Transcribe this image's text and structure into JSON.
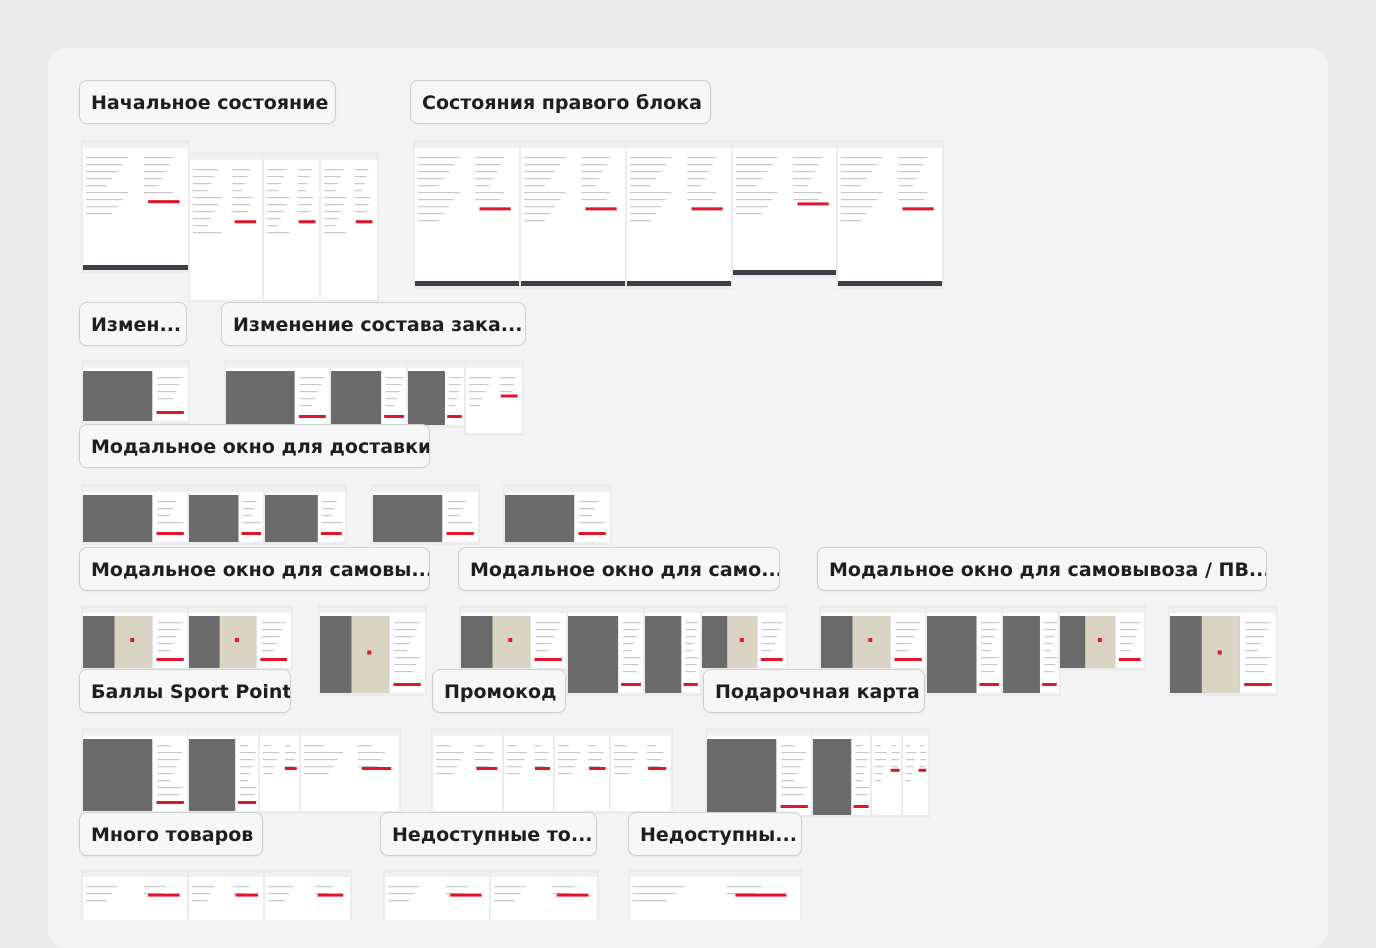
{
  "sections": [
    {
      "label": "Начальное состояние"
    },
    {
      "label": "Состояния правого блока"
    },
    {
      "label": "Измен..."
    },
    {
      "label": "Изменение состава зака..."
    },
    {
      "label": "Модальное окно для доставки"
    },
    {
      "label": "Модальное окно для самовы..."
    },
    {
      "label": "Модальное окно для само..."
    },
    {
      "label": "Модальное окно для самовывоза / ПВ..."
    },
    {
      "label": "Баллы Sport Point"
    },
    {
      "label": "Промокод"
    },
    {
      "label": "Подарочная карта"
    },
    {
      "label": "Много товаров"
    },
    {
      "label": "Недоступные то..."
    },
    {
      "label": "Недоступны..."
    }
  ]
}
